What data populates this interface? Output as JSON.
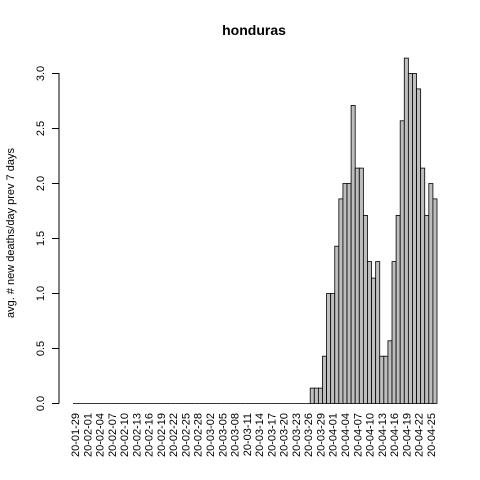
{
  "chart_data": {
    "type": "bar",
    "title": "honduras",
    "ylabel": "avg. # new deaths/day prev  7  days",
    "xlabel": "",
    "ylim": [
      0,
      3.2
    ],
    "yticks": [
      0.0,
      0.5,
      1.0,
      1.5,
      2.0,
      2.5,
      3.0
    ],
    "ytick_labels": [
      "0.0",
      "0.5",
      "1.0",
      "1.5",
      "2.0",
      "2.5",
      "3.0"
    ],
    "start_date": "2020-01-29",
    "x_tick_labels": [
      "20-01-29",
      "20-02-01",
      "20-02-04",
      "20-02-07",
      "20-02-10",
      "20-02-13",
      "20-02-16",
      "20-02-19",
      "20-02-22",
      "20-02-25",
      "20-02-28",
      "20-03-02",
      "20-03-05",
      "20-03-08",
      "20-03-11",
      "20-03-14",
      "20-03-17",
      "20-03-20",
      "20-03-23",
      "20-03-26",
      "20-03-29",
      "20-04-01",
      "20-04-04",
      "20-04-07",
      "20-04-10",
      "20-04-13",
      "20-04-16",
      "20-04-19",
      "20-04-22",
      "20-04-25"
    ],
    "values": [
      0,
      0,
      0,
      0,
      0,
      0,
      0,
      0,
      0,
      0,
      0,
      0,
      0,
      0,
      0,
      0,
      0,
      0,
      0,
      0,
      0,
      0,
      0,
      0,
      0,
      0,
      0,
      0,
      0,
      0,
      0,
      0,
      0,
      0,
      0,
      0,
      0,
      0,
      0,
      0,
      0,
      0,
      0,
      0,
      0,
      0,
      0,
      0,
      0,
      0,
      0,
      0,
      0,
      0,
      0,
      0,
      0,
      0,
      0.14,
      0.14,
      0.14,
      0.43,
      1.0,
      1.0,
      1.43,
      1.86,
      2.0,
      2.0,
      2.71,
      2.14,
      2.14,
      1.71,
      1.29,
      1.14,
      1.29,
      0.43,
      0.43,
      0.57,
      1.29,
      1.71,
      2.57,
      3.14,
      3.0,
      3.0,
      2.86,
      2.14,
      1.71,
      2.0,
      1.86
    ]
  }
}
